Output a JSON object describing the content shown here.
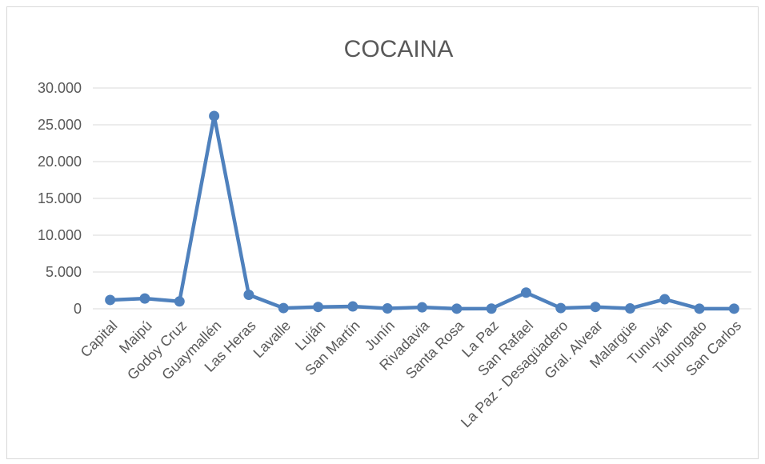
{
  "chart_data": {
    "type": "line",
    "title": "COCAINA",
    "xlabel": "",
    "ylabel": "",
    "ylim": [
      0,
      30000
    ],
    "yticks": [
      0,
      5000,
      10000,
      15000,
      20000,
      25000,
      30000
    ],
    "ytick_labels": [
      "0",
      "5.000",
      "10.000",
      "15.000",
      "20.000",
      "25.000",
      "30.000"
    ],
    "grid": true,
    "legend": "none",
    "color": "#4f81bd",
    "categories": [
      "Capital",
      "Maipú",
      "Godoy Cruz",
      "Guaymallén",
      "Las Heras",
      "Lavalle",
      "Luján",
      "San Martín",
      "Junín",
      "Rivadavia",
      "Santa Rosa",
      "La Paz",
      "San Rafael",
      "La Paz - Desagüadero",
      "Gral. Alvear",
      "Malargüe",
      "Tunuyán",
      "Tupungato",
      "San Carlos"
    ],
    "values": [
      1200,
      1400,
      1000,
      26200,
      1900,
      100,
      250,
      320,
      50,
      200,
      20,
      30,
      2200,
      100,
      250,
      50,
      1300,
      20,
      20
    ]
  }
}
